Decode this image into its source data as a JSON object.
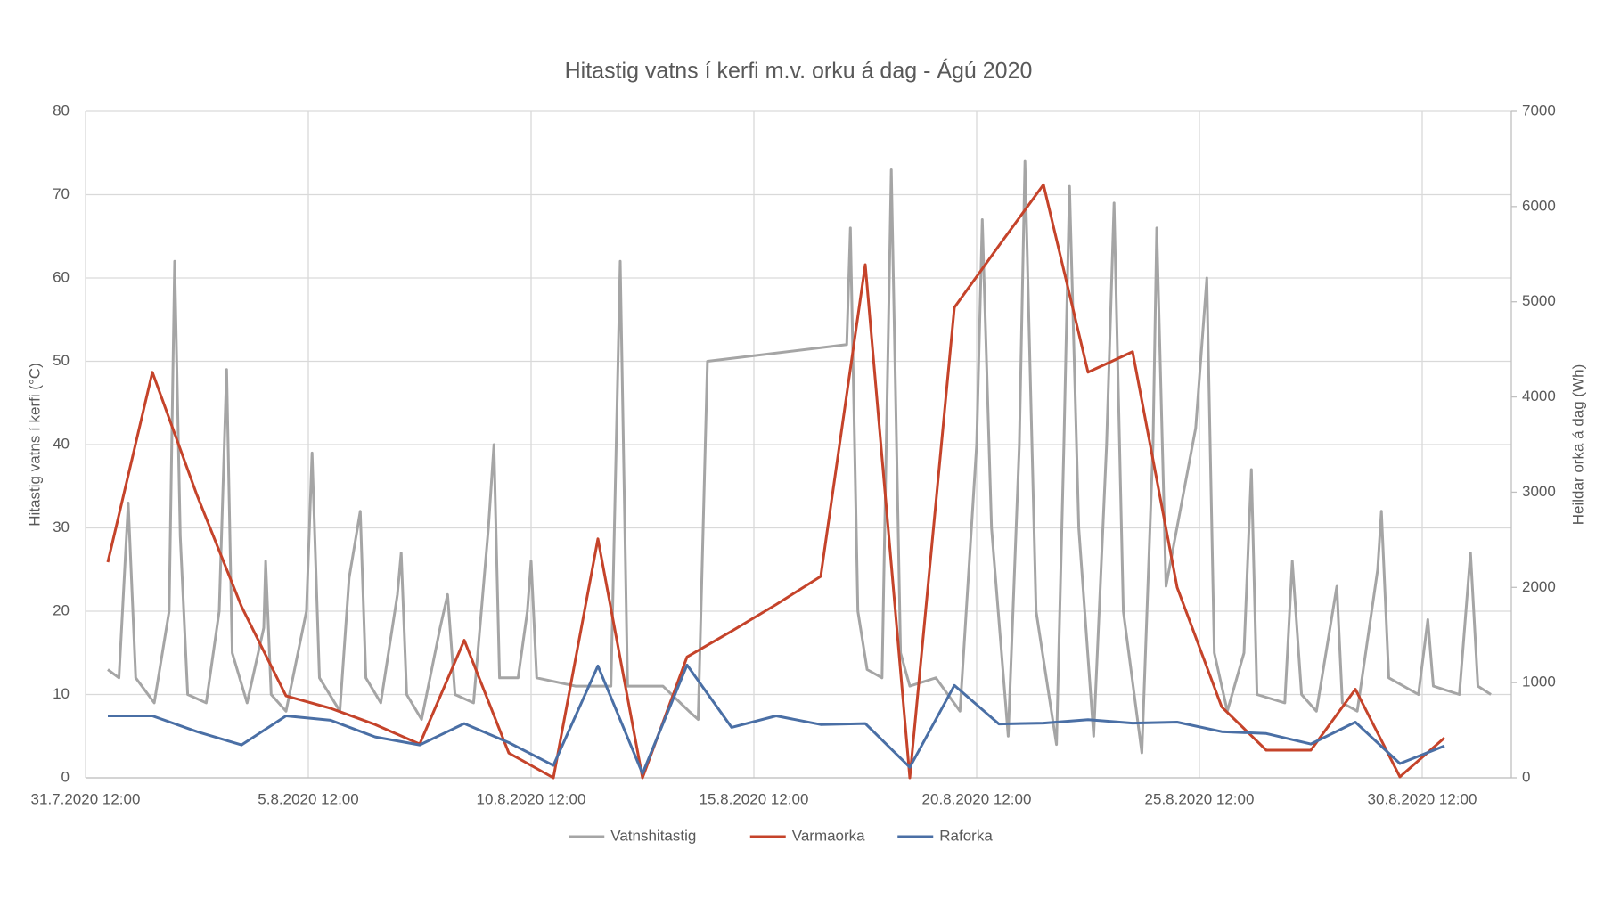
{
  "chart_data": {
    "type": "line",
    "title": "Hitastig vatns í kerfi m.v. orku á dag - Ágú 2020",
    "y_label": "Hitastig vatns í kerfi (°C)",
    "y2_label": "Heildar orka á dag (Wh)",
    "xlim": [
      "31.7.2020 12:00",
      "1.9.2020 12:00"
    ],
    "xticks": [
      "31.7.2020 12:00",
      "5.8.2020 12:00",
      "10.8.2020 12:00",
      "15.8.2020 12:00",
      "20.8.2020 12:00",
      "25.8.2020 12:00",
      "30.8.2020 12:00"
    ],
    "ylim": [
      0,
      80
    ],
    "yticks": [
      0,
      10,
      20,
      30,
      40,
      50,
      60,
      70,
      80
    ],
    "y2lim": [
      0,
      7000
    ],
    "y2ticks": [
      0,
      1000,
      2000,
      3000,
      4000,
      5000,
      6000,
      7000
    ],
    "grid": true,
    "legend": "bottom",
    "series": [
      {
        "name": "Vatnshitastig",
        "color": "#a5a5a5",
        "axis": "y",
        "x": [
          "1.8.2020 00:00",
          "1.8.2020 06:00",
          "1.8.2020 11:00",
          "1.8.2020 15:00",
          "2.8.2020 01:00",
          "2.8.2020 09:00",
          "2.8.2020 12:00",
          "2.8.2020 15:00",
          "2.8.2020 19:00",
          "3.8.2020 05:00",
          "3.8.2020 12:00",
          "3.8.2020 16:00",
          "3.8.2020 19:00",
          "4.8.2020 03:00",
          "4.8.2020 12:00",
          "4.8.2020 13:00",
          "4.8.2020 16:00",
          "5.8.2020 00:00",
          "5.8.2020 11:00",
          "5.8.2020 14:00",
          "5.8.2020 18:00",
          "6.8.2020 05:00",
          "6.8.2020 10:00",
          "6.8.2020 16:00",
          "6.8.2020 19:00",
          "7.8.2020 03:00",
          "7.8.2020 12:00",
          "7.8.2020 14:00",
          "7.8.2020 17:00",
          "8.8.2020 01:00",
          "8.8.2020 11:00",
          "8.8.2020 15:00",
          "8.8.2020 19:00",
          "9.8.2020 05:00",
          "9.8.2020 13:00",
          "9.8.2020 16:00",
          "9.8.2020 19:00",
          "10.8.2020 05:00",
          "10.8.2020 10:00",
          "10.8.2020 12:00",
          "10.8.2020 15:00",
          "11.8.2020 12:00",
          "12.8.2020 07:00",
          "12.8.2020 12:00",
          "12.8.2020 16:00",
          "13.8.2020 11:00",
          "14.8.2020 01:00",
          "14.8.2020 06:00",
          "14.8.2020 11:00",
          "17.8.2020 14:00",
          "17.8.2020 16:00",
          "17.8.2020 20:00",
          "18.8.2020 01:00",
          "18.8.2020 09:00",
          "18.8.2020 14:00",
          "18.8.2020 19:00",
          "19.8.2020 00:00",
          "19.8.2020 14:00",
          "20.8.2020 03:00",
          "20.8.2020 12:00",
          "20.8.2020 15:00",
          "20.8.2020 20:00",
          "21.8.2020 05:00",
          "21.8.2020 11:00",
          "21.8.2020 14:00",
          "21.8.2020 20:00",
          "22.8.2020 07:00",
          "22.8.2020 11:00",
          "22.8.2020 14:00",
          "22.8.2020 19:00",
          "23.8.2020 03:00",
          "23.8.2020 10:00",
          "23.8.2020 14:00",
          "23.8.2020 19:00",
          "24.8.2020 05:00",
          "24.8.2020 11:00",
          "24.8.2020 13:00",
          "24.8.2020 18:00",
          "25.8.2020 10:00",
          "25.8.2020 16:00",
          "25.8.2020 20:00",
          "26.8.2020 03:00",
          "26.8.2020 12:00",
          "26.8.2020 16:00",
          "26.8.2020 19:00",
          "27.8.2020 10:00",
          "27.8.2020 14:00",
          "27.8.2020 19:00",
          "28.8.2020 03:00",
          "28.8.2020 14:00",
          "28.8.2020 17:00",
          "29.8.2020 01:00",
          "29.8.2020 12:00",
          "29.8.2020 14:00",
          "29.8.2020 18:00",
          "30.8.2020 10:00",
          "30.8.2020 15:00",
          "30.8.2020 18:00",
          "31.8.2020 08:00",
          "31.8.2020 14:00",
          "31.8.2020 18:00",
          "1.9.2020 01:00"
        ],
        "values": [
          13,
          12,
          33,
          12,
          9,
          20,
          62,
          29,
          10,
          9,
          20,
          49,
          15,
          9,
          18,
          26,
          10,
          8,
          20,
          39,
          12,
          8,
          24,
          32,
          12,
          9,
          22,
          27,
          10,
          7,
          18,
          22,
          10,
          9,
          30,
          40,
          12,
          12,
          20,
          26,
          12,
          11,
          11,
          62,
          11,
          11,
          8,
          7,
          50,
          52,
          66,
          20,
          13,
          12,
          73,
          15,
          11,
          12,
          8,
          40,
          67,
          30,
          5,
          40,
          74,
          20,
          4,
          40,
          71,
          30,
          5,
          40,
          69,
          20,
          3,
          40,
          66,
          23,
          42,
          60,
          15,
          8,
          15,
          37,
          10,
          9,
          26,
          10,
          8,
          23,
          9,
          8,
          25,
          32,
          12,
          10,
          19,
          11,
          10,
          27,
          11,
          10
        ]
      },
      {
        "name": "Varmaorka",
        "color": "#c5432a",
        "axis": "y2",
        "x": [
          "1.8.2020 00:00",
          "2.8.2020 00:00",
          "3.8.2020 00:00",
          "4.8.2020 00:00",
          "5.8.2020 00:00",
          "6.8.2020 00:00",
          "7.8.2020 00:00",
          "8.8.2020 00:00",
          "9.8.2020 00:00",
          "10.8.2020 00:00",
          "11.8.2020 00:00",
          "12.8.2020 00:00",
          "13.8.2020 00:00",
          "14.8.2020 00:00",
          "15.8.2020 00:00",
          "16.8.2020 00:00",
          "17.8.2020 00:00",
          "18.8.2020 00:00",
          "19.8.2020 00:00",
          "20.8.2020 00:00",
          "21.8.2020 00:00",
          "22.8.2020 00:00",
          "23.8.2020 00:00",
          "24.8.2020 00:00",
          "25.8.2020 00:00",
          "26.8.2020 00:00",
          "27.8.2020 00:00",
          "28.8.2020 00:00",
          "29.8.2020 00:00",
          "30.8.2020 00:00",
          "31.8.2020 00:00"
        ],
        "values": [
          2265,
          4260,
          2970,
          1800,
          860,
          730,
          560,
          355,
          1445,
          260,
          0,
          2510,
          0,
          1270,
          1540,
          1820,
          2115,
          5390,
          0,
          4940,
          5590,
          6230,
          4260,
          4475,
          2000,
          745,
          290,
          290,
          930,
          10,
          420
        ]
      },
      {
        "name": "Raforka",
        "color": "#4a6fa5",
        "axis": "y2",
        "x": [
          "1.8.2020 00:00",
          "2.8.2020 00:00",
          "3.8.2020 00:00",
          "4.8.2020 00:00",
          "5.8.2020 00:00",
          "6.8.2020 00:00",
          "7.8.2020 00:00",
          "8.8.2020 00:00",
          "9.8.2020 00:00",
          "10.8.2020 00:00",
          "11.8.2020 00:00",
          "12.8.2020 00:00",
          "13.8.2020 00:00",
          "14.8.2020 00:00",
          "15.8.2020 00:00",
          "16.8.2020 00:00",
          "17.8.2020 00:00",
          "18.8.2020 00:00",
          "19.8.2020 00:00",
          "20.8.2020 00:00",
          "21.8.2020 00:00",
          "22.8.2020 00:00",
          "23.8.2020 00:00",
          "24.8.2020 00:00",
          "25.8.2020 00:00",
          "26.8.2020 00:00",
          "27.8.2020 00:00",
          "28.8.2020 00:00",
          "29.8.2020 00:00",
          "30.8.2020 00:00",
          "31.8.2020 00:00"
        ],
        "values": [
          650,
          650,
          485,
          345,
          650,
          605,
          430,
          345,
          570,
          370,
          130,
          1175,
          45,
          1185,
          530,
          650,
          560,
          570,
          110,
          970,
          565,
          575,
          610,
          575,
          585,
          485,
          465,
          355,
          585,
          150,
          335
        ]
      }
    ]
  }
}
